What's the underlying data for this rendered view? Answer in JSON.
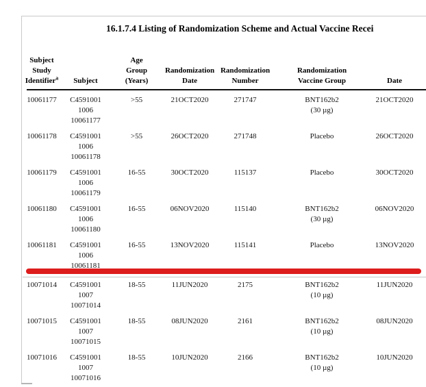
{
  "page": {
    "title": "16.1.7.4 Listing of Randomization Scheme and Actual Vaccine Recei"
  },
  "table": {
    "columns": [
      {
        "lines": [
          "Subject",
          "Study",
          "Identifier"
        ],
        "footnote_marker": "a"
      },
      {
        "lines": [
          "Subject"
        ]
      },
      {
        "lines": [
          "Age",
          "Group",
          "(Years)"
        ]
      },
      {
        "lines": [
          "Randomization",
          "Date"
        ]
      },
      {
        "lines": [
          "Randomization",
          "Number"
        ]
      },
      {
        "lines": [
          "Randomization",
          "Vaccine Group"
        ]
      },
      {
        "lines": [
          "Date"
        ]
      }
    ],
    "rows": [
      {
        "subject_study_identifier": "10061177",
        "subject1": "C4591001",
        "subject2": "1006",
        "subject3": "10061177",
        "age_group": ">55",
        "randomization_date": "21OCT2020",
        "randomization_number": "271747",
        "vaccine1": "BNT162b2",
        "vaccine2": "(30 µg)",
        "date": "21OCT2020"
      },
      {
        "subject_study_identifier": "10061178",
        "subject1": "C4591001",
        "subject2": "1006",
        "subject3": "10061178",
        "age_group": ">55",
        "randomization_date": "26OCT2020",
        "randomization_number": "271748",
        "vaccine1": "Placebo",
        "vaccine2": "",
        "date": "26OCT2020"
      },
      {
        "subject_study_identifier": "10061179",
        "subject1": "C4591001",
        "subject2": "1006",
        "subject3": "10061179",
        "age_group": "16-55",
        "randomization_date": "30OCT2020",
        "randomization_number": "115137",
        "vaccine1": "Placebo",
        "vaccine2": "",
        "date": "30OCT2020"
      },
      {
        "subject_study_identifier": "10061180",
        "subject1": "C4591001",
        "subject2": "1006",
        "subject3": "10061180",
        "age_group": "16-55",
        "randomization_date": "06NOV2020",
        "randomization_number": "115140",
        "vaccine1": "BNT162b2",
        "vaccine2": "(30 µg)",
        "date": "06NOV2020"
      },
      {
        "subject_study_identifier": "10061181",
        "subject1": "C4591001",
        "subject2": "1006",
        "subject3": "10061181",
        "age_group": "16-55",
        "randomization_date": "13NOV2020",
        "randomization_number": "115141",
        "vaccine1": "Placebo",
        "vaccine2": "",
        "date": "13NOV2020"
      },
      {
        "subject_study_identifier": "10071014",
        "subject1": "C4591001",
        "subject2": "1007",
        "subject3": "10071014",
        "age_group": "18-55",
        "randomization_date": "11JUN2020",
        "randomization_number": "2175",
        "vaccine1": "BNT162b2",
        "vaccine2": "(10 µg)",
        "date": "11JUN2020"
      },
      {
        "subject_study_identifier": "10071015",
        "subject1": "C4591001",
        "subject2": "1007",
        "subject3": "10071015",
        "age_group": "18-55",
        "randomization_date": "08JUN2020",
        "randomization_number": "2161",
        "vaccine1": "BNT162b2",
        "vaccine2": "(10 µg)",
        "date": "08JUN2020"
      },
      {
        "subject_study_identifier": "10071016",
        "subject1": "C4591001",
        "subject2": "1007",
        "subject3": "10071016",
        "age_group": "18-55",
        "randomization_date": "10JUN2020",
        "randomization_number": "2166",
        "vaccine1": "BNT162b2",
        "vaccine2": "(10 µg)",
        "date": "10JUN2020"
      }
    ],
    "annotation": {
      "type": "red-underline",
      "color": "#dd1c1c",
      "below_subject": "10061181"
    }
  }
}
